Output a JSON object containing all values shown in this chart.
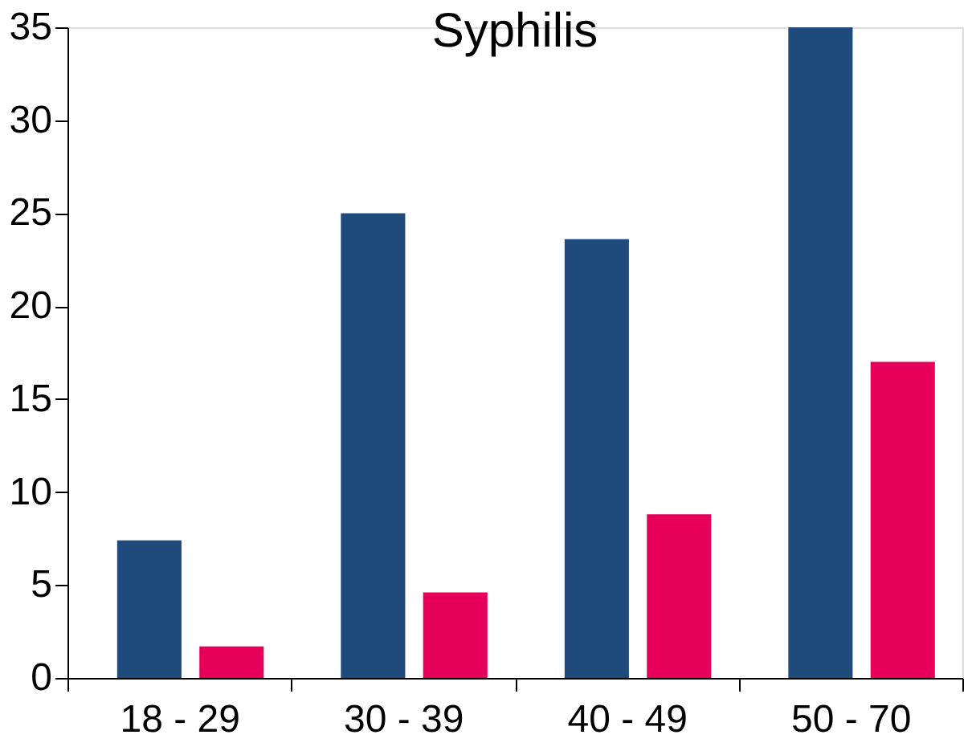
{
  "chart_data": {
    "type": "bar",
    "title": "Syphilis",
    "categories": [
      "18 - 29",
      "30 - 39",
      "40 - 49",
      "50 - 70"
    ],
    "series": [
      {
        "color": "#1f4a7c",
        "values": [
          7.4,
          25.0,
          23.6,
          35.0
        ]
      },
      {
        "color": "#e6005a",
        "values": [
          1.7,
          4.6,
          8.8,
          17.0
        ]
      }
    ],
    "ylim": [
      0,
      35
    ],
    "yticks": [
      0,
      5,
      10,
      15,
      20,
      25,
      30,
      35
    ],
    "grid": false,
    "legend": false
  }
}
